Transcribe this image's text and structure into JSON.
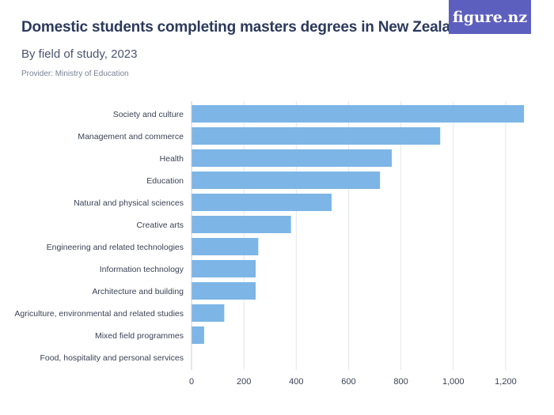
{
  "header": {
    "title": "Domestic students completing masters degrees in New Zealand",
    "subtitle": "By field of study, 2023",
    "provider": "Provider: Ministry of Education",
    "logo_text": "figure.nz"
  },
  "colors": {
    "bar": "#7cb5e6",
    "grid": "#e3e6ee",
    "axis_text": "#3a4255",
    "logo_bg": "#5d5fbf"
  },
  "chart_data": {
    "type": "bar",
    "orientation": "horizontal",
    "title": "Domestic students completing masters degrees in New Zealand",
    "subtitle": "By field of study, 2023",
    "xlabel": "",
    "ylabel": "",
    "xlim": [
      0,
      1300
    ],
    "grid": true,
    "x_ticks": [
      0,
      200,
      400,
      600,
      800,
      1000,
      1200
    ],
    "x_tick_labels": [
      "0",
      "200",
      "400",
      "600",
      "800",
      "1,000",
      "1,200"
    ],
    "categories": [
      "Society and culture",
      "Management and commerce",
      "Health",
      "Education",
      "Natural and physical sciences",
      "Creative arts",
      "Engineering and related technologies",
      "Information technology",
      "Architecture and building",
      "Agriculture, environmental and related studies",
      "Mixed field programmes",
      "Food, hospitality and personal services"
    ],
    "values": [
      1270,
      950,
      765,
      720,
      535,
      380,
      255,
      245,
      245,
      125,
      48,
      0
    ]
  }
}
